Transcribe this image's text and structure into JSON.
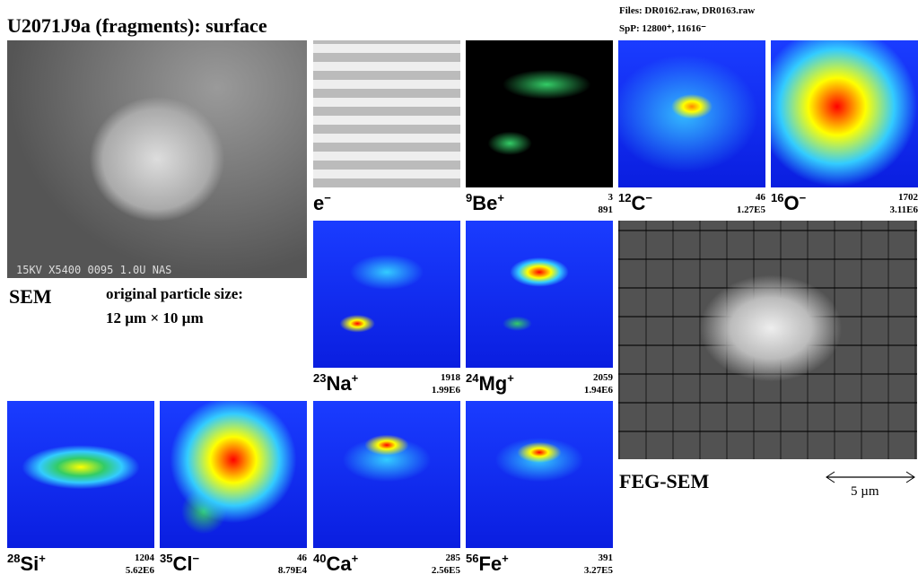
{
  "header": {
    "title": "U2071J9a (fragments): surface",
    "files": "Files: DR0162.raw, DR0163.raw",
    "spp": "SpP:  12800⁺, 11616⁻"
  },
  "sem": {
    "overlay": "15KV X5400   0095   1.0U NAS",
    "label": "SEM",
    "size_caption": "original particle size:",
    "size_value": "12 µm × 10 µm"
  },
  "feg_sem": {
    "label": "FEG-SEM",
    "scale": "5 µm"
  },
  "panels": [
    {
      "mass": "",
      "symbol": "e",
      "charge": "−",
      "max": "",
      "total": ""
    },
    {
      "mass": "9",
      "symbol": "Be",
      "charge": "+",
      "max": "3",
      "total": "891"
    },
    {
      "mass": "12",
      "symbol": "C",
      "charge": "−",
      "max": "46",
      "total": "1.27E5"
    },
    {
      "mass": "16",
      "symbol": "O",
      "charge": "−",
      "max": "1702",
      "total": "3.11E6"
    },
    {
      "mass": "23",
      "symbol": "Na",
      "charge": "+",
      "max": "1918",
      "total": "1.99E6"
    },
    {
      "mass": "24",
      "symbol": "Mg",
      "charge": "+",
      "max": "2059",
      "total": "1.94E6"
    },
    {
      "mass": "28",
      "symbol": "Si",
      "charge": "+",
      "max": "1204",
      "total": "5.62E6"
    },
    {
      "mass": "35",
      "symbol": "Cl",
      "charge": "−",
      "max": "46",
      "total": "8.79E4"
    },
    {
      "mass": "40",
      "symbol": "Ca",
      "charge": "+",
      "max": "285",
      "total": "2.56E5"
    },
    {
      "mass": "56",
      "symbol": "Fe",
      "charge": "+",
      "max": "391",
      "total": "3.27E5"
    }
  ]
}
